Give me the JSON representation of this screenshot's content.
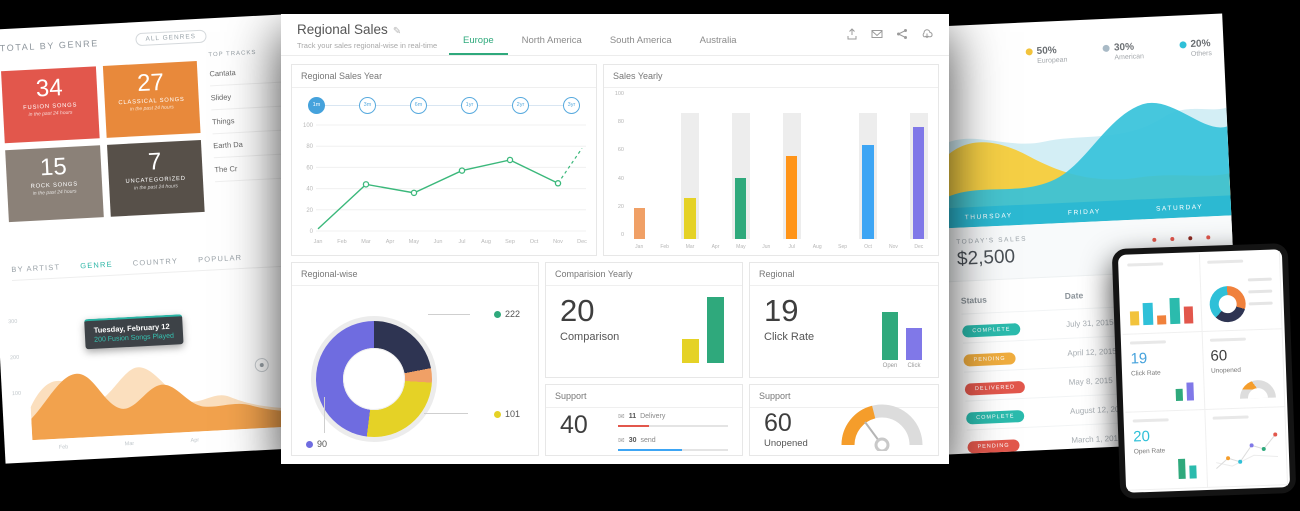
{
  "left": {
    "title": "TOTAL BY GENRE",
    "filter": "ALL GENRES",
    "accent": "#2ab5a5",
    "cards": [
      {
        "value": "34",
        "label": "FUSION SONGS",
        "sub": "in the past 24 hours",
        "color": "#e2574c"
      },
      {
        "value": "27",
        "label": "CLASSICAL SONGS",
        "sub": "in the past 24 hours",
        "color": "#e8893b"
      },
      {
        "value": "15",
        "label": "ROCK SONGS",
        "sub": "in the past 24 hours",
        "color": "#8b8178"
      },
      {
        "value": "7",
        "label": "UNCATEGORIZED",
        "sub": "in the past 24 hours",
        "color": "#575049"
      }
    ],
    "top_tracks": {
      "title": "TOP TRACKS",
      "items": [
        "Cantata",
        "Slidey",
        "Things",
        "Earth Da",
        "The Cr"
      ]
    },
    "tabs": [
      {
        "label": "BY ARTIST",
        "active": false
      },
      {
        "label": "GENRE",
        "active": true
      },
      {
        "label": "COUNTRY",
        "active": false
      },
      {
        "label": "POPULAR",
        "active": false
      }
    ],
    "tooltip": {
      "line1": "Tuesday, February 12",
      "line2": "200 Fusion Songs Played"
    },
    "y_labels": [
      "300",
      "200",
      "100"
    ],
    "x_labels": [
      "Feb",
      "Mar",
      "Apr"
    ]
  },
  "center": {
    "title": "Regional Sales",
    "subtitle": "Track your sales regional-wise in real-time",
    "tabs": [
      {
        "label": "Europe",
        "active": true
      },
      {
        "label": "North America",
        "active": false
      },
      {
        "label": "South America",
        "active": false
      },
      {
        "label": "Australia",
        "active": false
      }
    ],
    "header_icons": [
      "export-icon",
      "mail-icon",
      "share-icon",
      "download-icon",
      "edit-icon"
    ],
    "regional_sales_year": {
      "title": "Regional Sales Year",
      "ranges": [
        "1m",
        "3m",
        "6m",
        "1yr",
        "2yr",
        "3yr"
      ],
      "active_range": "1m",
      "chart": {
        "type": "line",
        "months": [
          "Jan",
          "Feb",
          "Mar",
          "Apr",
          "May",
          "Jun",
          "Jul",
          "Aug",
          "Sep",
          "Oct",
          "Nov",
          "Dec"
        ],
        "yticks": [
          0,
          20,
          40,
          60,
          80,
          100
        ],
        "solid_points": [
          [
            0,
            2
          ],
          [
            2,
            44
          ],
          [
            4,
            36
          ],
          [
            6,
            57
          ],
          [
            8,
            67
          ],
          [
            10,
            45
          ]
        ],
        "dashed_point": [
          11,
          78
        ],
        "marker_indexes": [
          1,
          2,
          3,
          4,
          5
        ],
        "color": "#3bb87b"
      }
    },
    "sales_yearly": {
      "title": "Sales Yearly",
      "chart": {
        "type": "bar",
        "months": [
          "Jan",
          "Feb",
          "Mar",
          "Apr",
          "May",
          "Jun",
          "Jul",
          "Aug",
          "Sep",
          "Oct",
          "Nov",
          "Dec"
        ],
        "yticks": [
          0,
          20,
          40,
          60,
          80,
          100
        ],
        "values": [
          23,
          0,
          30,
          0,
          45,
          0,
          61,
          0,
          0,
          69,
          0,
          82
        ],
        "colors": [
          "#f0a066",
          "",
          "#e5d226",
          "",
          "#2fa97c",
          "",
          "#ff9418",
          "",
          "",
          "#3da5f4",
          "",
          "#8078e8"
        ],
        "ghost": [
          false,
          false,
          true,
          false,
          true,
          false,
          true,
          false,
          false,
          true,
          false,
          true
        ],
        "ghost_value": 93
      }
    },
    "regional_wise": {
      "title": "Regional-wise",
      "chart": {
        "type": "donut",
        "slices": [
          {
            "color": "#2e3452",
            "pct": 22
          },
          {
            "color": "#f0a066",
            "pct": 4
          },
          {
            "color": "#e5d226",
            "pct": 26
          },
          {
            "color": "#6f6ce0",
            "pct": 48
          }
        ]
      },
      "callouts": [
        {
          "value": "222",
          "color": "#2fa97c"
        },
        {
          "value": "101",
          "color": "#e5d226"
        },
        {
          "value": "90",
          "color": "#6f6ce0"
        }
      ]
    },
    "comparison": {
      "title": "Comparision Yearly",
      "value": "20",
      "label": "Comparison",
      "bars": [
        {
          "color": "#e5d226",
          "pct": 34
        },
        {
          "color": "#2fa97c",
          "pct": 92
        }
      ]
    },
    "click_rate": {
      "title": "Regional",
      "value": "19",
      "label": "Click Rate",
      "bars": [
        {
          "color": "#2fa97c",
          "pct": 82,
          "label": "Open"
        },
        {
          "color": "#8078e8",
          "pct": 55,
          "label": "Click"
        }
      ]
    },
    "support_msgs": {
      "title": "Support",
      "value": "40",
      "rows": [
        {
          "count": "11",
          "label": "Delivery",
          "color": "#e2574c",
          "pct": 28
        },
        {
          "count": "30",
          "label": "send",
          "color": "#3da5f4",
          "pct": 58
        }
      ]
    },
    "support_gauge": {
      "title": "Support",
      "value": "60",
      "label": "Unopened",
      "fraction": 0.42,
      "color": "#f59d2b"
    }
  },
  "right": {
    "legend": [
      {
        "pct": "50%",
        "label": "European",
        "color": "#f2c33c"
      },
      {
        "pct": "30%",
        "label": "American",
        "color": "#a9bac6"
      },
      {
        "pct": "20%",
        "label": "Others",
        "color": "#2fc0d8"
      }
    ],
    "days": [
      "THURSDAY",
      "FRIDAY",
      "SATURDAY"
    ],
    "today_sales": {
      "label": "TODAY'S SALES",
      "value": "$2,500"
    },
    "table": {
      "headers": [
        "Status",
        "Date"
      ],
      "rows": [
        {
          "status": "COMPLETE",
          "color": "#2bbbad",
          "date": "July 31, 2015"
        },
        {
          "status": "PENDING",
          "color": "#f0ad3e",
          "date": "April 12, 2015"
        },
        {
          "status": "DELIVERED",
          "color": "#e2574c",
          "date": "May 8, 2015"
        },
        {
          "status": "COMPLETE",
          "color": "#2bbbad",
          "date": "August 12, 2015"
        },
        {
          "status": "PENDING",
          "color": "#e2574c",
          "date": "March 1, 2016"
        }
      ]
    }
  },
  "tablet": {
    "click_rate": {
      "value": "19",
      "label": "Click Rate"
    },
    "unopened": {
      "value": "60",
      "label": "Unopened"
    },
    "open_rate": {
      "value": "20",
      "label": "Open Rate"
    }
  }
}
